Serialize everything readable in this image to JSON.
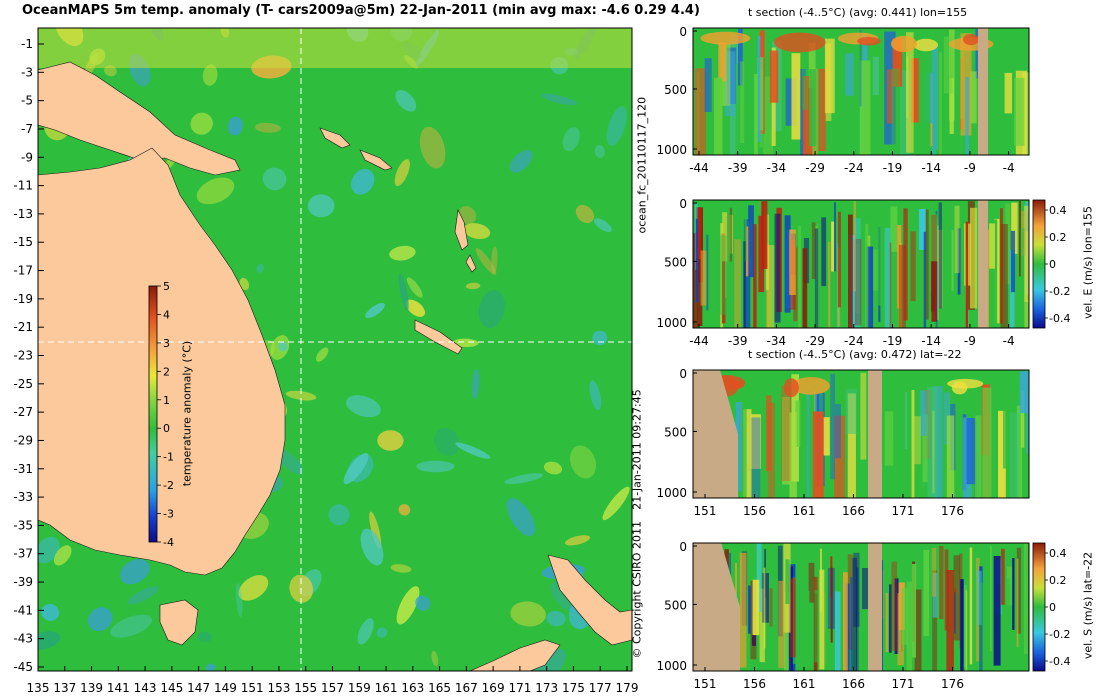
{
  "title": "OceanMAPS 5m temp. anomaly (T- cars2009a@5m) 22-Jan-2011 (min avg max: -4.6 0.29 4.4)",
  "map": {
    "lat_ticks": [
      "-1",
      "-3",
      "-5",
      "-7",
      "-9",
      "-11",
      "-13",
      "-15",
      "-17",
      "-19",
      "-21",
      "-23",
      "-25",
      "-27",
      "-29",
      "-31",
      "-33",
      "-35",
      "-37",
      "-39",
      "-41",
      "-43",
      "-45"
    ],
    "lon_ticks": [
      "135",
      "137",
      "139",
      "141",
      "143",
      "145",
      "147",
      "149",
      "151",
      "153",
      "155",
      "157",
      "159",
      "161",
      "163",
      "165",
      "167",
      "169",
      "171",
      "173",
      "175",
      "177",
      "179"
    ],
    "crosshair_lon": "155",
    "crosshair_lat": "-22",
    "colorbar": {
      "label": "temperature anomaly (°C)",
      "ticks": [
        "5",
        "4",
        "3",
        "2",
        "1",
        "0",
        "-1",
        "-2",
        "-3",
        "-4"
      ]
    }
  },
  "side_labels": {
    "forecast": "ocean_fc_20110117_120",
    "run_time": "21-Jan-2011 09:27:45",
    "copyright": "© Copyright CSIRO 2011"
  },
  "panels": [
    {
      "title": "t section (-4..5°C) (avg: 0.441) lon=155",
      "y_ticks": [
        "0",
        "500",
        "1000"
      ],
      "x_ticks": [
        "-44",
        "-39",
        "-34",
        "-29",
        "-24",
        "-19",
        "-14",
        "-9",
        "-4"
      ]
    },
    {
      "title": "",
      "y_ticks": [
        "0",
        "500",
        "1000"
      ],
      "x_ticks": [
        "-44",
        "-39",
        "-34",
        "-29",
        "-24",
        "-19",
        "-14",
        "-9",
        "-4"
      ],
      "colorbar_label": "vel. E (m/s) lon=155",
      "colorbar_ticks": [
        "0.4",
        "0.2",
        "0",
        "-0.2",
        "-0.4"
      ]
    },
    {
      "title": "t section (-4..5°C) (avg: 0.472) lat=-22",
      "y_ticks": [
        "0",
        "500",
        "1000"
      ],
      "x_ticks": [
        "151",
        "156",
        "161",
        "166",
        "171",
        "176"
      ]
    },
    {
      "title": "",
      "y_ticks": [
        "0",
        "500",
        "1000"
      ],
      "x_ticks": [
        "151",
        "156",
        "161",
        "166",
        "171",
        "176"
      ],
      "colorbar_label": "vel. S (m/s) lat=-22",
      "colorbar_ticks": [
        "0.4",
        "0.2",
        "0",
        "-0.2",
        "-0.4"
      ]
    }
  ],
  "colors": {
    "land": "#fbc99b",
    "section_land": "#c8aa86",
    "ocean_mid": "#2fbd3e"
  }
}
